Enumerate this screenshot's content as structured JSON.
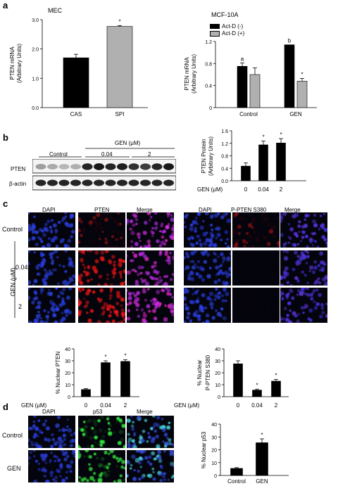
{
  "panels": {
    "a": "a",
    "b": "b",
    "c": "c",
    "d": "d"
  },
  "colors": {
    "black_bar": "#000000",
    "gray_bar": "#b0b0b0",
    "dapi": "#2a3cd8",
    "pten_red": "#e01818",
    "p53_green": "#30e030",
    "merge_magenta": "#b040c0",
    "merge_cyan": "#40d0e0"
  },
  "panel_a": {
    "chart_data": [
      {
        "type": "bar",
        "title": "MEC",
        "ylabel_line1": "PTEN mRNA",
        "ylabel_line2": "(Arbitrary Units)",
        "categories": [
          "CAS",
          "SPI"
        ],
        "values": [
          1.7,
          2.77
        ],
        "errors": [
          0.12,
          0.03
        ],
        "bar_colors": [
          "#000000",
          "#b0b0b0"
        ],
        "annotations": [
          "",
          "*"
        ],
        "ylim": [
          0,
          3.0
        ],
        "yticks": [
          "0.0",
          "1.0",
          "2.0",
          "3.0"
        ]
      },
      {
        "type": "bar",
        "title": "MCF-10A",
        "ylabel_line1": "PTEN mRNA",
        "ylabel_line2": "(Arbitrary Units)",
        "categories": [
          "Control",
          "GEN"
        ],
        "legend": [
          "Act-D (-)",
          "Act-D (+)"
        ],
        "series": [
          {
            "name": "Act-D (-)",
            "values": [
              0.75,
              1.14
            ],
            "errors": [
              0.06,
              0.0
            ],
            "annotations": [
              "a",
              "b"
            ]
          },
          {
            "name": "Act-D (+)",
            "values": [
              0.6,
              0.48
            ],
            "errors": [
              0.12,
              0.05
            ],
            "annotations": [
              "",
              "*"
            ]
          }
        ],
        "ylim": [
          0,
          1.2
        ],
        "yticks": [
          "0",
          "0.4",
          "0.8",
          "1.2"
        ]
      }
    ]
  },
  "panel_b": {
    "blot": {
      "header_gen": "GEN (μM)",
      "group_labels": [
        "Control",
        "0.04",
        "2"
      ],
      "row_labels": [
        "PTEN",
        "β-actin"
      ]
    },
    "chart_data": {
      "type": "bar",
      "ylabel_line1": "PTEN Protein",
      "ylabel_line2": "(Arbitrary Units)",
      "xlabel_prefix": "GEN (μM)",
      "categories": [
        "0",
        "0.04",
        "2"
      ],
      "values": [
        0.47,
        1.15,
        1.21
      ],
      "errors": [
        0.1,
        0.12,
        0.14
      ],
      "annotations": [
        "",
        "*",
        "*"
      ],
      "ylim": [
        0,
        1.6
      ],
      "yticks": [
        "0.0",
        "0.4",
        "0.8",
        "1.2",
        "1.6"
      ]
    }
  },
  "panel_c": {
    "left_headers": [
      "DAPI",
      "PTEN",
      "Merge"
    ],
    "right_headers": [
      "DAPI",
      "P-PTEN S380",
      "Merge"
    ],
    "row_labels": [
      "Control",
      "0.04",
      "2"
    ],
    "gen_label": "GEN (μM)",
    "charts": [
      {
        "type": "bar",
        "ylabel_line1": "% Nuclear PTEN",
        "ylabel_line2": "",
        "xlabel_prefix": "GEN (μM)",
        "categories": [
          "0",
          "0.04",
          "2"
        ],
        "values": [
          6,
          28.5,
          29.5
        ],
        "errors": [
          0.8,
          1.5,
          1.5
        ],
        "annotations": [
          "",
          "*",
          "*"
        ],
        "ylim": [
          0,
          40
        ],
        "yticks": [
          "0",
          "10",
          "20",
          "30",
          "40"
        ]
      },
      {
        "type": "bar",
        "ylabel_line1": "% Nuclear",
        "ylabel_line2": "P-PTEN S380",
        "xlabel_prefix": "GEN (μM)",
        "categories": [
          "0",
          "0.04",
          "2"
        ],
        "values": [
          27.5,
          5.5,
          13
        ],
        "errors": [
          2.5,
          0.8,
          1.5
        ],
        "annotations": [
          "",
          "*",
          "*"
        ],
        "ylim": [
          0,
          40
        ],
        "yticks": [
          "0",
          "10",
          "20",
          "30",
          "40"
        ]
      }
    ]
  },
  "panel_d": {
    "headers": [
      "DAPI",
      "p53",
      "Merge"
    ],
    "row_labels": [
      "Control",
      "GEN"
    ],
    "chart_data": {
      "type": "bar",
      "ylabel_line1": "% Nuclear p53",
      "ylabel_line2": "",
      "categories": [
        "Control",
        "GEN"
      ],
      "values": [
        5.5,
        25.5
      ],
      "errors": [
        0.6,
        3.0
      ],
      "annotations": [
        "",
        "*"
      ],
      "ylim": [
        0,
        40
      ],
      "yticks": [
        "0",
        "10",
        "20",
        "30",
        "40"
      ]
    }
  }
}
